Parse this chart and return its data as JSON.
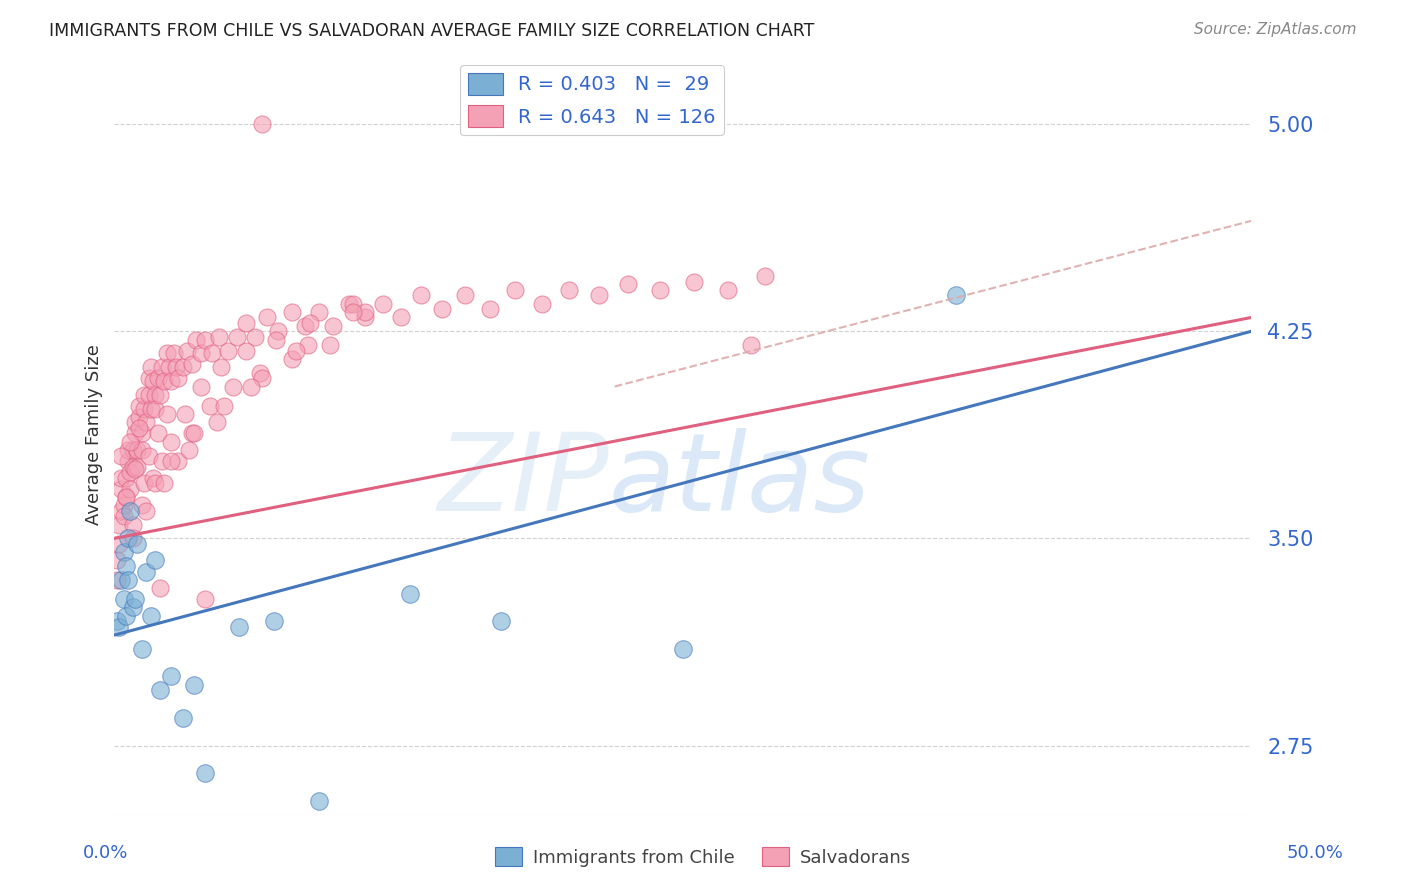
{
  "title": "IMMIGRANTS FROM CHILE VS SALVADORAN AVERAGE FAMILY SIZE CORRELATION CHART",
  "source": "Source: ZipAtlas.com",
  "ylabel": "Average Family Size",
  "yticks": [
    2.75,
    3.5,
    4.25,
    5.0
  ],
  "xlim": [
    0.0,
    0.5
  ],
  "ylim": [
    2.5,
    5.25
  ],
  "color_chile": "#7BAFD4",
  "color_salva": "#F4A0B5",
  "color_chile_dark": "#4477BB",
  "color_salva_dark": "#E06080",
  "background_color": "#FFFFFF",
  "grid_color": "#CCCCCC",
  "axis_label_color": "#3366CC",
  "title_color": "#222222",
  "source_color": "#888888",
  "chile_x": [
    0.001,
    0.002,
    0.003,
    0.004,
    0.004,
    0.005,
    0.005,
    0.006,
    0.006,
    0.007,
    0.008,
    0.009,
    0.01,
    0.012,
    0.014,
    0.016,
    0.018,
    0.02,
    0.025,
    0.03,
    0.035,
    0.04,
    0.055,
    0.07,
    0.09,
    0.13,
    0.17,
    0.25,
    0.37
  ],
  "chile_y": [
    3.2,
    3.18,
    3.35,
    3.28,
    3.45,
    3.4,
    3.22,
    3.35,
    3.5,
    3.6,
    3.25,
    3.28,
    3.48,
    3.1,
    3.38,
    3.22,
    3.42,
    2.95,
    3.0,
    2.85,
    2.97,
    2.65,
    3.18,
    3.2,
    2.55,
    3.3,
    3.2,
    3.1,
    4.38
  ],
  "salva_x": [
    0.001,
    0.001,
    0.002,
    0.002,
    0.003,
    0.003,
    0.003,
    0.004,
    0.004,
    0.005,
    0.005,
    0.006,
    0.006,
    0.007,
    0.007,
    0.008,
    0.008,
    0.009,
    0.009,
    0.01,
    0.01,
    0.011,
    0.011,
    0.012,
    0.012,
    0.013,
    0.013,
    0.014,
    0.015,
    0.015,
    0.016,
    0.016,
    0.017,
    0.018,
    0.018,
    0.019,
    0.02,
    0.021,
    0.022,
    0.023,
    0.024,
    0.025,
    0.026,
    0.027,
    0.028,
    0.03,
    0.032,
    0.034,
    0.036,
    0.038,
    0.04,
    0.043,
    0.046,
    0.05,
    0.054,
    0.058,
    0.062,
    0.067,
    0.072,
    0.078,
    0.084,
    0.09,
    0.096,
    0.103,
    0.11,
    0.118,
    0.126,
    0.135,
    0.144,
    0.154,
    0.165,
    0.176,
    0.188,
    0.2,
    0.213,
    0.226,
    0.24,
    0.255,
    0.27,
    0.286,
    0.003,
    0.005,
    0.007,
    0.009,
    0.011,
    0.013,
    0.015,
    0.017,
    0.019,
    0.021,
    0.023,
    0.025,
    0.028,
    0.031,
    0.034,
    0.038,
    0.042,
    0.047,
    0.052,
    0.058,
    0.064,
    0.071,
    0.078,
    0.086,
    0.095,
    0.105,
    0.008,
    0.012,
    0.018,
    0.025,
    0.035,
    0.048,
    0.065,
    0.085,
    0.11,
    0.28,
    0.008,
    0.014,
    0.022,
    0.033,
    0.045,
    0.06,
    0.08,
    0.105,
    0.02,
    0.04,
    0.065
  ],
  "salva_y": [
    3.35,
    3.42,
    3.55,
    3.48,
    3.6,
    3.68,
    3.72,
    3.62,
    3.58,
    3.65,
    3.72,
    3.78,
    3.82,
    3.74,
    3.68,
    3.82,
    3.76,
    3.88,
    3.92,
    3.82,
    3.76,
    3.94,
    3.98,
    3.88,
    3.82,
    3.97,
    4.02,
    3.92,
    4.08,
    4.02,
    3.97,
    4.12,
    4.07,
    4.02,
    3.97,
    4.08,
    4.02,
    4.12,
    4.07,
    4.17,
    4.12,
    4.07,
    4.17,
    4.12,
    4.08,
    4.12,
    4.18,
    4.13,
    4.22,
    4.17,
    4.22,
    4.17,
    4.23,
    4.18,
    4.23,
    4.28,
    4.23,
    4.3,
    4.25,
    4.32,
    4.27,
    4.32,
    4.27,
    4.35,
    4.3,
    4.35,
    4.3,
    4.38,
    4.33,
    4.38,
    4.33,
    4.4,
    4.35,
    4.4,
    4.38,
    4.42,
    4.4,
    4.43,
    4.4,
    4.45,
    3.8,
    3.65,
    3.85,
    3.75,
    3.9,
    3.7,
    3.8,
    3.72,
    3.88,
    3.78,
    3.95,
    3.85,
    3.78,
    3.95,
    3.88,
    4.05,
    3.98,
    4.12,
    4.05,
    4.18,
    4.1,
    4.22,
    4.15,
    4.28,
    4.2,
    4.35,
    3.55,
    3.62,
    3.7,
    3.78,
    3.88,
    3.98,
    4.08,
    4.2,
    4.32,
    4.2,
    3.5,
    3.6,
    3.7,
    3.82,
    3.92,
    4.05,
    4.18,
    4.32,
    3.32,
    3.28,
    5.0
  ],
  "chile_line_x0": 0.0,
  "chile_line_y0": 3.15,
  "chile_line_x1": 0.5,
  "chile_line_y1": 4.25,
  "salva_line_x0": 0.0,
  "salva_line_y0": 3.5,
  "salva_line_x1": 0.5,
  "salva_line_y1": 4.3,
  "dash_line_x0": 0.22,
  "dash_line_y0": 4.05,
  "dash_line_x1": 0.5,
  "dash_line_y1": 4.65,
  "watermark_zip_color": "#C5D8F0",
  "watermark_atlas_color": "#A8C8E8"
}
